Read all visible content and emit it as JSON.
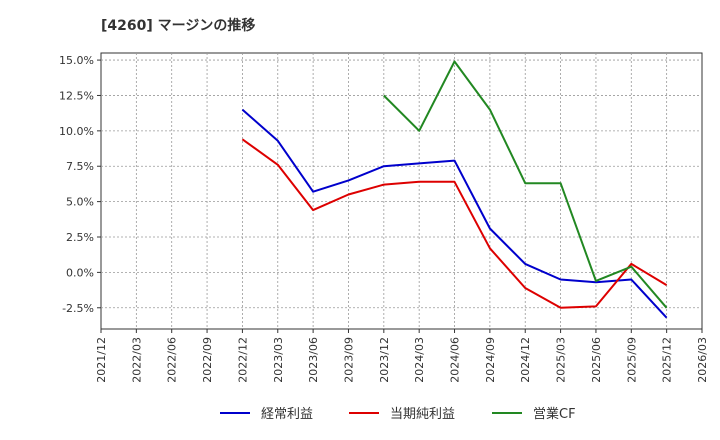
{
  "chart_data": {
    "type": "line",
    "title": "[4260]  マージンの推移",
    "xlabel": "",
    "ylabel": "",
    "x": [
      "2021/12",
      "2022/03",
      "2022/06",
      "2022/09",
      "2022/12",
      "2023/03",
      "2023/06",
      "2023/09",
      "2023/12",
      "2024/03",
      "2024/06",
      "2024/09",
      "2024/12",
      "2025/03",
      "2025/06",
      "2025/09",
      "2025/12",
      "2026/03"
    ],
    "ylim": [
      -4.0,
      15.5
    ],
    "yticks": [
      -2.5,
      0.0,
      2.5,
      5.0,
      7.5,
      10.0,
      12.5,
      15.0
    ],
    "ytick_labels": [
      "-2.5%",
      "0.0%",
      "2.5%",
      "5.0%",
      "7.5%",
      "10.0%",
      "12.5%",
      "15.0%"
    ],
    "grid": true,
    "legend_position": "bottom",
    "series": [
      {
        "name": "経常利益",
        "color": "#0000cc",
        "values": [
          null,
          null,
          null,
          null,
          11.5,
          9.3,
          5.7,
          6.5,
          7.5,
          7.7,
          7.9,
          3.1,
          0.6,
          -0.5,
          -0.7,
          -0.5,
          -3.2,
          null
        ]
      },
      {
        "name": "当期純利益",
        "color": "#dd0000",
        "values": [
          null,
          null,
          null,
          null,
          9.4,
          7.6,
          4.4,
          5.5,
          6.2,
          6.4,
          6.4,
          1.7,
          -1.1,
          -2.5,
          -2.4,
          0.6,
          -0.9,
          null
        ]
      },
      {
        "name": "営業CF",
        "color": "#228822",
        "values": [
          null,
          null,
          null,
          null,
          null,
          null,
          null,
          null,
          12.5,
          10.0,
          14.9,
          11.5,
          6.3,
          6.3,
          -0.6,
          0.4,
          -2.5,
          null
        ]
      }
    ]
  }
}
